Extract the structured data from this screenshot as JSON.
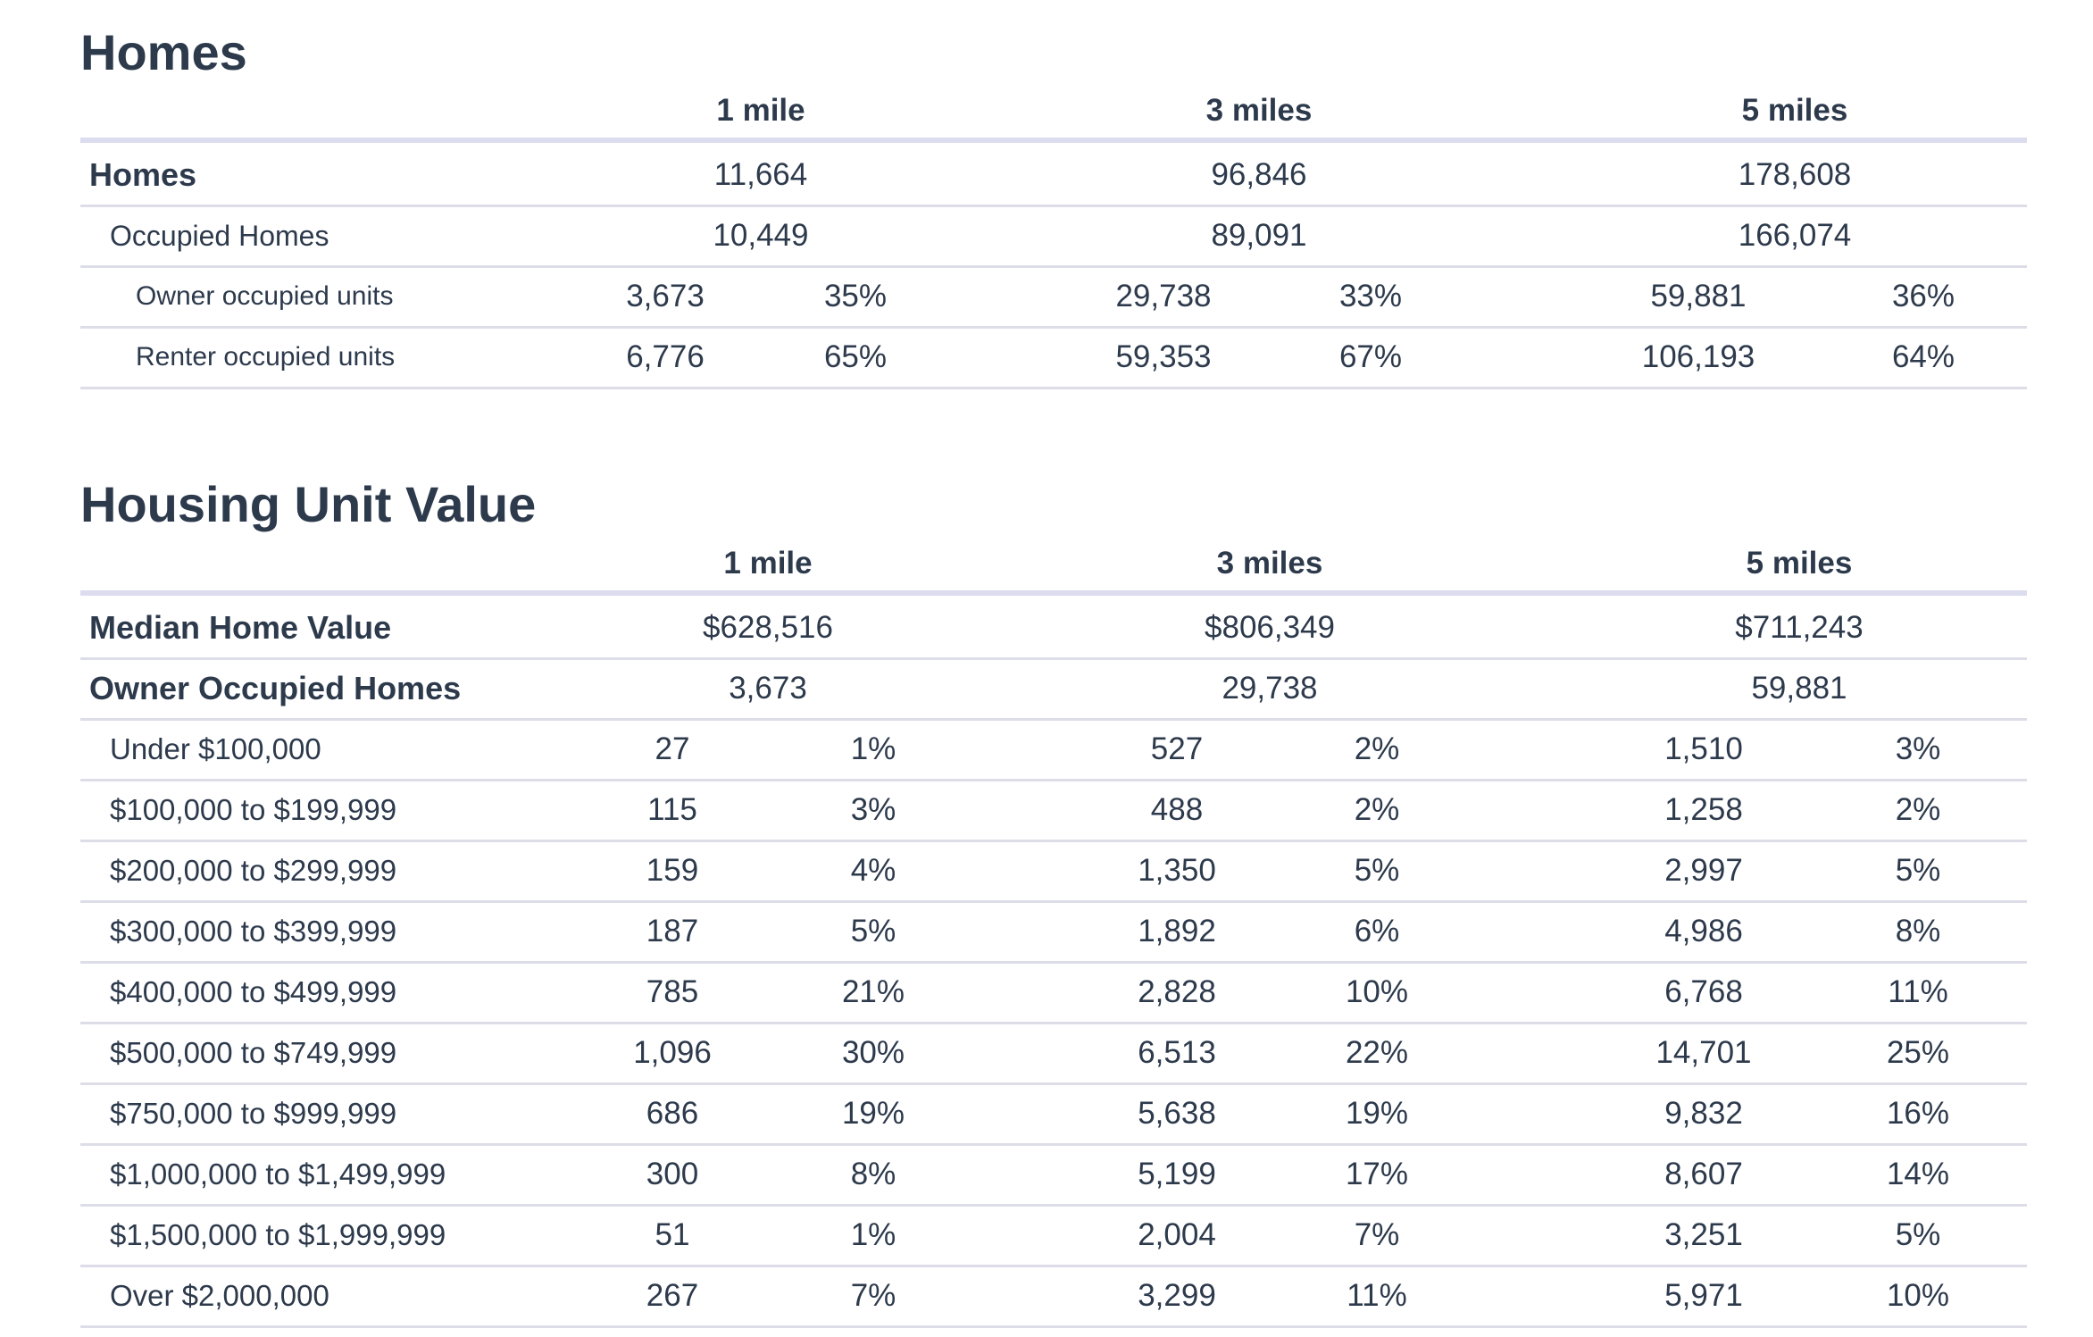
{
  "homes": {
    "title": "Homes",
    "headers": [
      "1 mile",
      "3 miles",
      "5 miles"
    ],
    "rows": [
      {
        "label": "Homes",
        "values": [
          "11,664",
          "96,846",
          "178,608"
        ]
      },
      {
        "label": "Occupied Homes",
        "values": [
          "10,449",
          "89,091",
          "166,074"
        ]
      },
      {
        "label": "Owner occupied units",
        "pairs": [
          [
            "3,673",
            "35%"
          ],
          [
            "29,738",
            "33%"
          ],
          [
            "59,881",
            "36%"
          ]
        ]
      },
      {
        "label": "Renter occupied units",
        "pairs": [
          [
            "6,776",
            "65%"
          ],
          [
            "59,353",
            "67%"
          ],
          [
            "106,193",
            "64%"
          ]
        ]
      }
    ]
  },
  "housing_unit_value": {
    "title": "Housing Unit Value",
    "headers": [
      "1 mile",
      "3 miles",
      "5 miles"
    ],
    "rows": [
      {
        "label": "Median Home Value",
        "values": [
          "$628,516",
          "$806,349",
          "$711,243"
        ]
      },
      {
        "label": "Owner Occupied Homes",
        "values": [
          "3,673",
          "29,738",
          "59,881"
        ]
      },
      {
        "label": "Under $100,000",
        "pairs": [
          [
            "27",
            "1%"
          ],
          [
            "527",
            "2%"
          ],
          [
            "1,510",
            "3%"
          ]
        ]
      },
      {
        "label": "$100,000 to $199,999",
        "pairs": [
          [
            "115",
            "3%"
          ],
          [
            "488",
            "2%"
          ],
          [
            "1,258",
            "2%"
          ]
        ]
      },
      {
        "label": "$200,000 to $299,999",
        "pairs": [
          [
            "159",
            "4%"
          ],
          [
            "1,350",
            "5%"
          ],
          [
            "2,997",
            "5%"
          ]
        ]
      },
      {
        "label": "$300,000 to $399,999",
        "pairs": [
          [
            "187",
            "5%"
          ],
          [
            "1,892",
            "6%"
          ],
          [
            "4,986",
            "8%"
          ]
        ]
      },
      {
        "label": "$400,000 to $499,999",
        "pairs": [
          [
            "785",
            "21%"
          ],
          [
            "2,828",
            "10%"
          ],
          [
            "6,768",
            "11%"
          ]
        ]
      },
      {
        "label": "$500,000 to $749,999",
        "pairs": [
          [
            "1,096",
            "30%"
          ],
          [
            "6,513",
            "22%"
          ],
          [
            "14,701",
            "25%"
          ]
        ]
      },
      {
        "label": "$750,000 to $999,999",
        "pairs": [
          [
            "686",
            "19%"
          ],
          [
            "5,638",
            "19%"
          ],
          [
            "9,832",
            "16%"
          ]
        ]
      },
      {
        "label": "$1,000,000 to $1,499,999",
        "pairs": [
          [
            "300",
            "8%"
          ],
          [
            "5,199",
            "17%"
          ],
          [
            "8,607",
            "14%"
          ]
        ]
      },
      {
        "label": "$1,500,000 to $1,999,999",
        "pairs": [
          [
            "51",
            "1%"
          ],
          [
            "2,004",
            "7%"
          ],
          [
            "3,251",
            "5%"
          ]
        ]
      },
      {
        "label": "Over $2,000,000",
        "pairs": [
          [
            "267",
            "7%"
          ],
          [
            "3,299",
            "11%"
          ],
          [
            "5,971",
            "10%"
          ]
        ]
      }
    ]
  }
}
